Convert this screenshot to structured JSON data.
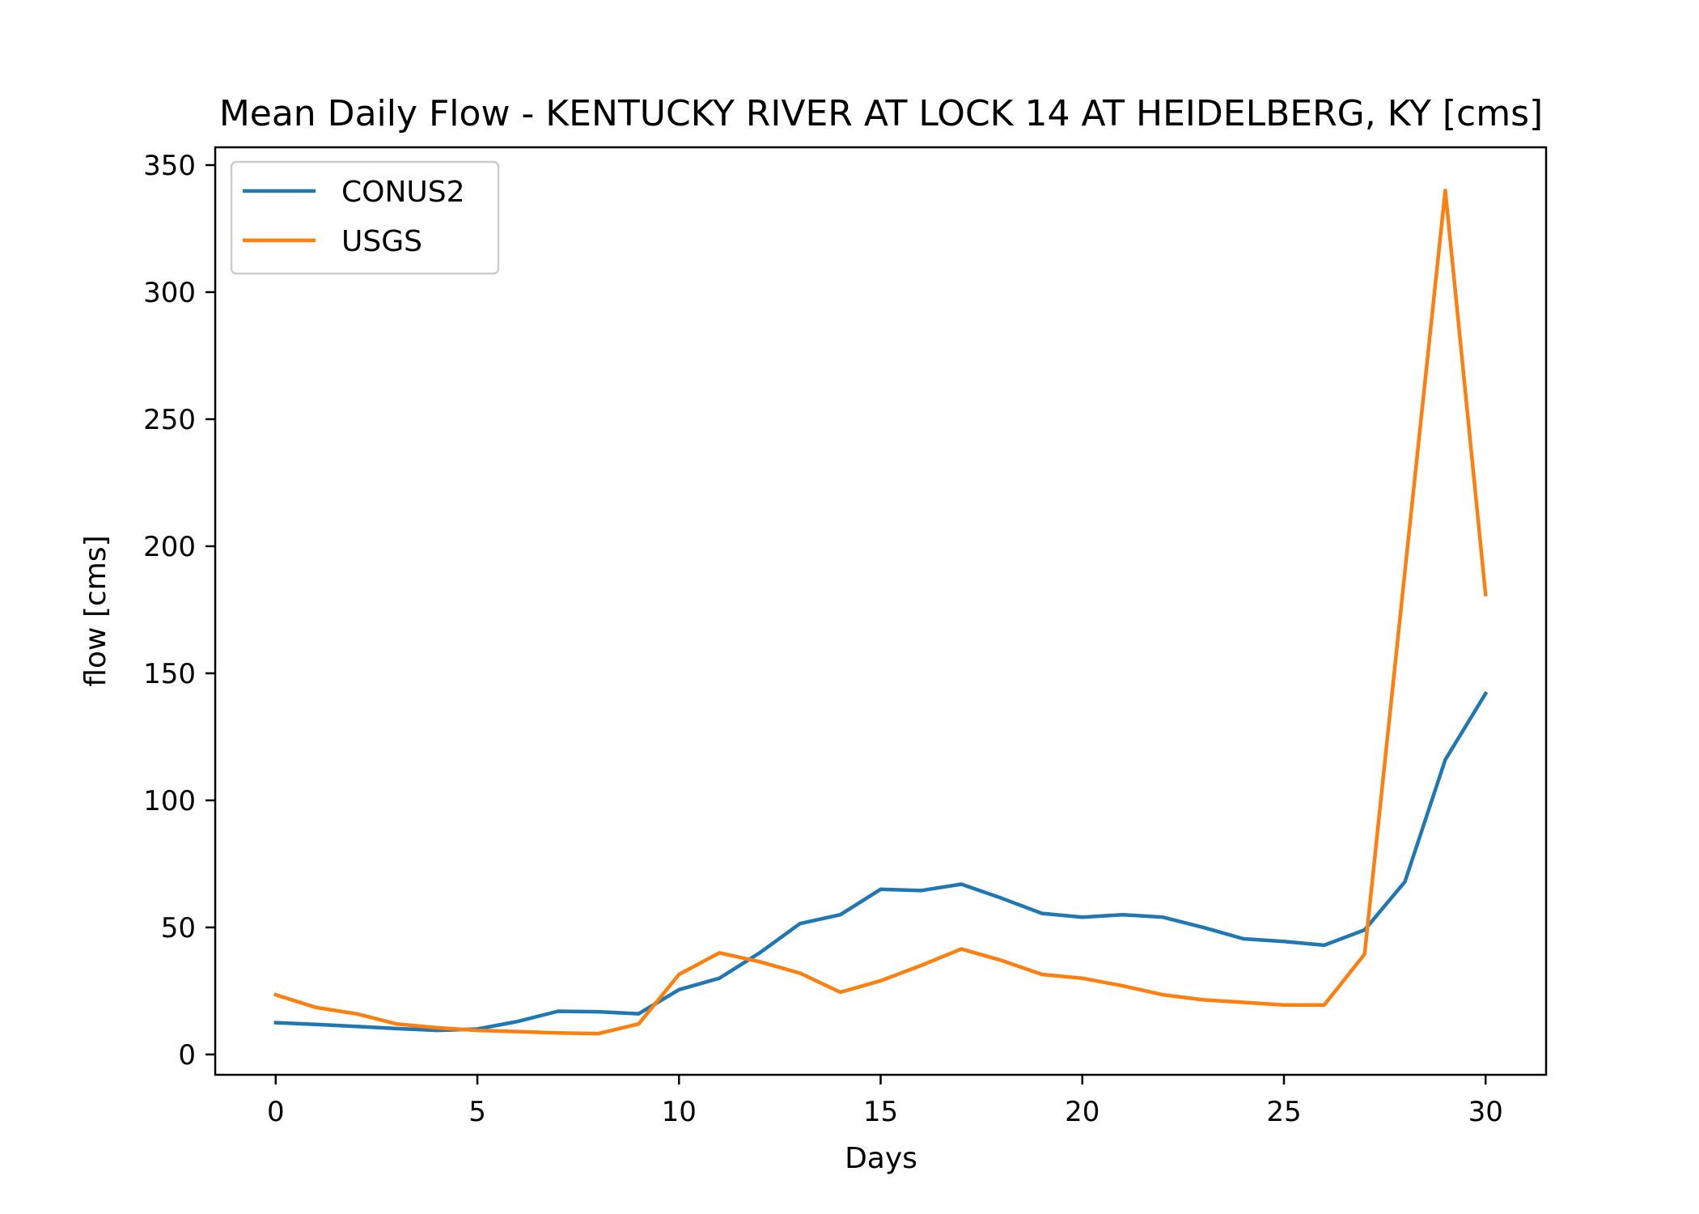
{
  "chart_data": {
    "type": "line",
    "title": "Mean Daily Flow - KENTUCKY RIVER AT LOCK 14 AT HEIDELBERG, KY [cms]",
    "xlabel": "Days",
    "ylabel": "flow [cms]",
    "xlim": [
      -1.5,
      31.5
    ],
    "ylim": [
      -8,
      357
    ],
    "xticks": [
      0,
      5,
      10,
      15,
      20,
      25,
      30
    ],
    "yticks": [
      0,
      50,
      100,
      150,
      200,
      250,
      300,
      350
    ],
    "grid": false,
    "legend": {
      "placement": "top-left"
    },
    "x": [
      0,
      1,
      2,
      3,
      4,
      5,
      6,
      7,
      8,
      9,
      10,
      11,
      12,
      13,
      14,
      15,
      16,
      17,
      18,
      19,
      20,
      21,
      22,
      23,
      24,
      25,
      26,
      27,
      28,
      29,
      30
    ],
    "series": [
      {
        "name": "CONUS2",
        "color": "#1f77b4",
        "values": [
          12.5,
          11.8,
          11.0,
          10.2,
          9.5,
          10.0,
          13.0,
          17.0,
          16.8,
          16.0,
          25.5,
          30.0,
          40.0,
          51.5,
          55.0,
          65.0,
          64.5,
          67.0,
          61.5,
          55.5,
          54.0,
          55.0,
          54.0,
          50.0,
          45.5,
          44.5,
          43.0,
          49.0,
          68.0,
          116.0,
          142.0
        ]
      },
      {
        "name": "USGS",
        "color": "#ff7f0e",
        "values": [
          23.5,
          18.5,
          16.0,
          12.0,
          10.5,
          9.5,
          9.0,
          8.5,
          8.2,
          12.0,
          31.5,
          40.0,
          36.5,
          32.0,
          24.5,
          29.0,
          35.0,
          41.5,
          37.0,
          31.5,
          30.0,
          27.0,
          23.5,
          21.5,
          20.5,
          19.5,
          19.5,
          39.5,
          190.0,
          340.0,
          181.0
        ]
      }
    ]
  }
}
